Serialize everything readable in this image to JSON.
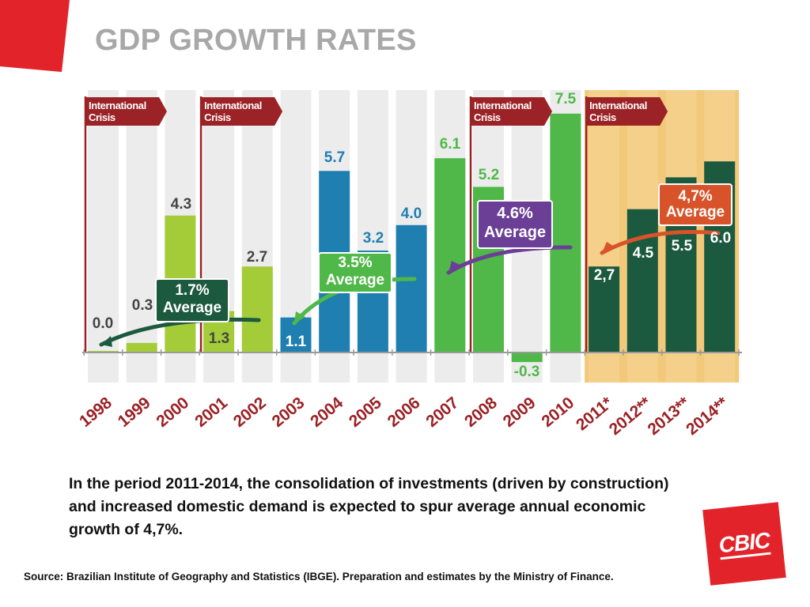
{
  "slide": {
    "title": "GDP GROWTH RATES",
    "body": "In the period 2011-2014, the consolidation of investments (driven by construction) and increased domestic demand is expected to spur average annual economic growth of 4,7%.",
    "source": "Source: Brazilian Institute of Geography and Statistics (IBGE). Preparation and estimates by the Ministry of Finance.",
    "logo_text": "CBIC"
  },
  "colors": {
    "corner_red": "#e3232a",
    "title_gray": "#a8a8a8",
    "crisis_red": "#9b2226",
    "lime": "#a4cc39",
    "blue": "#1f7fb0",
    "green": "#4fb848",
    "dark_green": "#1c5a3f",
    "purple": "#6c3f96",
    "orange": "#d9532a",
    "stripe": "#ececec",
    "forecast_bg": "#f2c97a"
  },
  "chart_data": {
    "type": "bar",
    "title": "GDP GROWTH RATES",
    "xlabel": "",
    "ylabel": "",
    "ylim": [
      -0.5,
      7.6
    ],
    "categories": [
      "1998",
      "1999",
      "2000",
      "2001",
      "2002",
      "2003",
      "2004",
      "2005",
      "2006",
      "2007",
      "2008",
      "2009",
      "2010",
      "2011*",
      "2012**",
      "2013**",
      "2014**"
    ],
    "values": [
      0.0,
      0.3,
      4.3,
      1.3,
      2.7,
      1.1,
      5.7,
      3.2,
      4.0,
      6.1,
      5.2,
      -0.3,
      7.5,
      2.7,
      4.5,
      5.5,
      6.0
    ],
    "value_labels": [
      "0.0",
      "0.3",
      "4.3",
      "1.3",
      "2.7",
      "1.1",
      "5.7",
      "3.2",
      "4.0",
      "6.1",
      "5.2",
      "-0.3",
      "7.5",
      "2,7",
      "4.5",
      "5.5",
      "6.0"
    ],
    "series": [
      {
        "period": "1998-2002",
        "color_key": "lime",
        "from": 0,
        "to": 4
      },
      {
        "period": "2003-2006",
        "color_key": "blue",
        "from": 5,
        "to": 8
      },
      {
        "period": "2007-2010",
        "color_key": "green",
        "from": 9,
        "to": 12
      },
      {
        "period": "2011-2014",
        "color_key": "dark_green",
        "from": 13,
        "to": 16
      }
    ],
    "averages": [
      {
        "line1": "1.7%",
        "line2": "Average",
        "value": 1.7,
        "color_key": "dark_green"
      },
      {
        "line1": "3.5%",
        "line2": "Average",
        "value": 3.5,
        "color_key": "green"
      },
      {
        "line1": "4.6%",
        "line2": "Average",
        "value": 4.6,
        "color_key": "purple"
      },
      {
        "line1": "4,7%",
        "line2": "Average",
        "value": 4.7,
        "color_key": "orange"
      }
    ],
    "crisis_markers": [
      {
        "start_index": 0,
        "line1": "International",
        "line2": "Crisis"
      },
      {
        "start_index": 3,
        "line1": "International",
        "line2": "Crisis"
      },
      {
        "start_index": 10,
        "line1": "International",
        "line2": "Crisis"
      },
      {
        "start_index": 13,
        "line1": "International",
        "line2": "Crisis"
      }
    ],
    "forecast_range": {
      "from": 13,
      "to": 16
    },
    "grid": false,
    "legend": "none"
  }
}
